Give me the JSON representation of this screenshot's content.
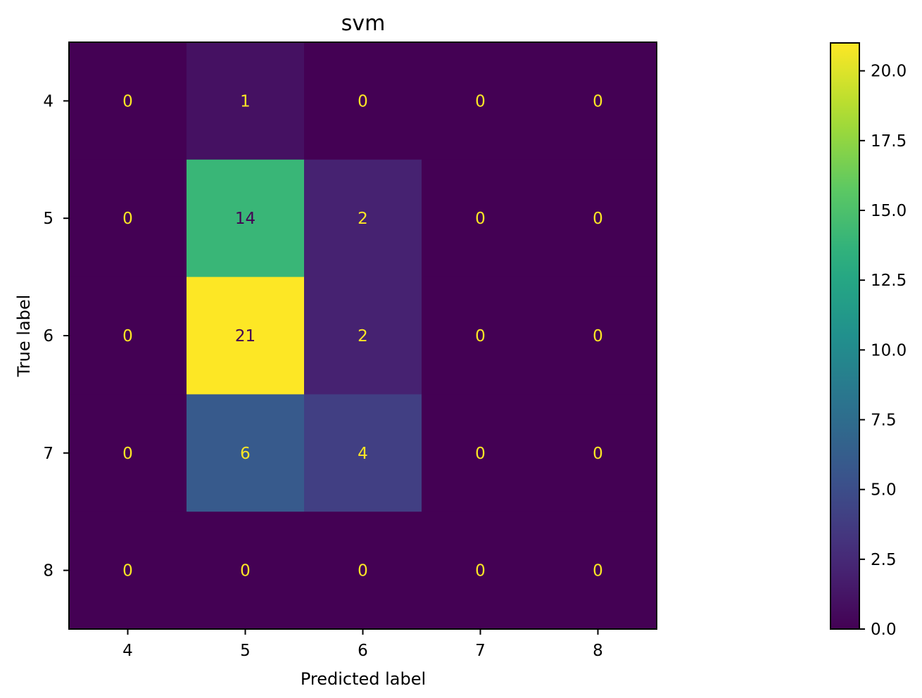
{
  "chart_data": {
    "type": "heatmap",
    "title": "svm",
    "xlabel": "Predicted label",
    "ylabel": "True label",
    "x_categories": [
      "4",
      "5",
      "6",
      "7",
      "8"
    ],
    "y_categories": [
      "4",
      "5",
      "6",
      "7",
      "8"
    ],
    "values": [
      [
        0,
        1,
        0,
        0,
        0
      ],
      [
        0,
        14,
        2,
        0,
        0
      ],
      [
        0,
        21,
        2,
        0,
        0
      ],
      [
        0,
        6,
        4,
        0,
        0
      ],
      [
        0,
        0,
        0,
        0,
        0
      ]
    ],
    "colormap": "viridis",
    "colorbar": {
      "range": [
        0,
        21
      ],
      "ticks": [
        0.0,
        2.5,
        5.0,
        7.5,
        10.0,
        12.5,
        15.0,
        17.5,
        20.0
      ],
      "tick_labels": [
        "0.0",
        "2.5",
        "5.0",
        "7.5",
        "10.0",
        "12.5",
        "15.0",
        "17.5",
        "20.0"
      ]
    },
    "text_colors": {
      "on_dark": "#fde725",
      "on_light": "#440154"
    }
  }
}
